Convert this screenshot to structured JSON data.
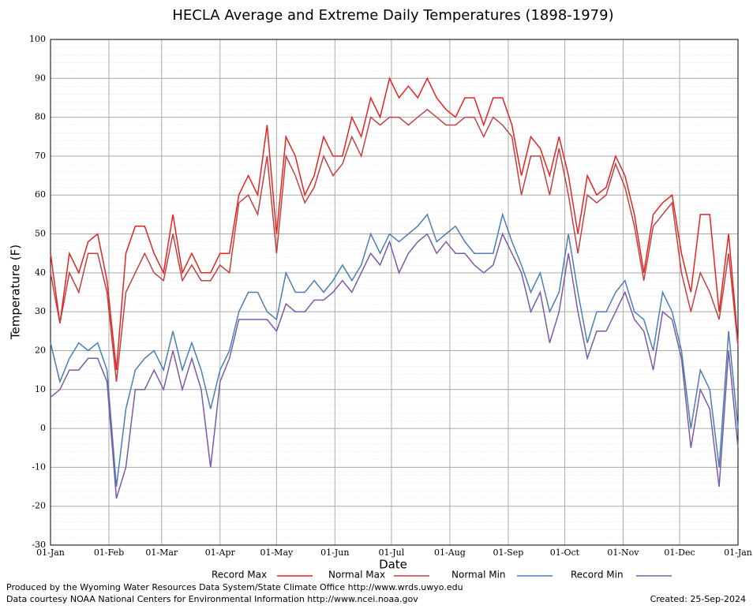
{
  "chart_data": {
    "type": "line",
    "title": "HECLA Average and Extreme Daily Temperatures (1898-1979)",
    "xlabel": "Date",
    "ylabel": "Temperature (F)",
    "x": [
      0,
      5,
      10,
      15,
      20,
      25,
      30,
      35,
      40,
      45,
      50,
      55,
      60,
      65,
      70,
      75,
      80,
      85,
      90,
      95,
      100,
      105,
      110,
      115,
      120,
      125,
      130,
      135,
      140,
      145,
      150,
      155,
      160,
      165,
      170,
      175,
      180,
      185,
      190,
      195,
      200,
      205,
      210,
      215,
      220,
      225,
      230,
      235,
      240,
      245,
      250,
      255,
      260,
      265,
      270,
      275,
      280,
      285,
      290,
      295,
      300,
      305,
      310,
      315,
      320,
      325,
      330,
      335,
      340,
      345,
      350,
      355,
      360,
      365
    ],
    "series": [
      {
        "name": "Record Max",
        "color": "#e8221f",
        "values": [
          45,
          27,
          45,
          40,
          48,
          50,
          38,
          15,
          45,
          52,
          52,
          45,
          40,
          55,
          40,
          45,
          40,
          40,
          45,
          45,
          60,
          65,
          60,
          78,
          50,
          75,
          70,
          60,
          65,
          75,
          70,
          70,
          80,
          75,
          85,
          80,
          90,
          85,
          88,
          85,
          90,
          85,
          82,
          80,
          85,
          85,
          78,
          85,
          85,
          78,
          65,
          75,
          72,
          65,
          75,
          65,
          50,
          65,
          60,
          62,
          70,
          65,
          55,
          40,
          55,
          58,
          60,
          45,
          35,
          55,
          55,
          30,
          50,
          22
        ]
      },
      {
        "name": "Normal Max",
        "color": "#c24141",
        "values": [
          40,
          27,
          40,
          35,
          45,
          45,
          35,
          12,
          35,
          40,
          45,
          40,
          38,
          50,
          38,
          42,
          38,
          38,
          42,
          40,
          58,
          60,
          55,
          70,
          45,
          70,
          65,
          58,
          62,
          70,
          65,
          68,
          75,
          70,
          80,
          78,
          80,
          80,
          78,
          80,
          82,
          80,
          78,
          78,
          80,
          80,
          75,
          80,
          78,
          75,
          60,
          70,
          70,
          60,
          72,
          60,
          45,
          60,
          58,
          60,
          68,
          62,
          52,
          38,
          52,
          55,
          58,
          40,
          30,
          40,
          35,
          28,
          45,
          21
        ]
      },
      {
        "name": "Normal Min",
        "color": "#4a7eb5",
        "values": [
          22,
          12,
          18,
          22,
          20,
          22,
          15,
          -15,
          5,
          15,
          18,
          20,
          15,
          25,
          15,
          22,
          15,
          5,
          15,
          20,
          30,
          35,
          35,
          30,
          28,
          40,
          35,
          35,
          38,
          35,
          38,
          42,
          38,
          42,
          50,
          45,
          50,
          48,
          50,
          52,
          55,
          48,
          50,
          52,
          48,
          45,
          45,
          45,
          55,
          48,
          42,
          35,
          40,
          30,
          35,
          50,
          35,
          22,
          30,
          30,
          35,
          38,
          30,
          28,
          20,
          35,
          30,
          20,
          0,
          15,
          10,
          -10,
          25,
          0
        ]
      },
      {
        "name": "Record Min",
        "color": "#7b5aa6",
        "values": [
          8,
          10,
          15,
          15,
          18,
          18,
          12,
          -18,
          -10,
          10,
          10,
          15,
          10,
          20,
          10,
          18,
          10,
          -10,
          12,
          18,
          28,
          28,
          28,
          28,
          25,
          32,
          30,
          30,
          33,
          33,
          35,
          38,
          35,
          40,
          45,
          42,
          48,
          40,
          45,
          48,
          50,
          45,
          48,
          45,
          45,
          42,
          40,
          42,
          50,
          45,
          40,
          30,
          35,
          22,
          30,
          45,
          30,
          18,
          25,
          25,
          30,
          35,
          28,
          25,
          15,
          30,
          28,
          18,
          -5,
          10,
          5,
          -15,
          20,
          -5
        ]
      }
    ],
    "xlim": [
      0,
      365
    ],
    "xticks": [
      {
        "value": 0,
        "label": "01-Jan"
      },
      {
        "value": 31,
        "label": "01-Feb"
      },
      {
        "value": 59,
        "label": "01-Mar"
      },
      {
        "value": 90,
        "label": "01-Apr"
      },
      {
        "value": 120,
        "label": "01-May"
      },
      {
        "value": 151,
        "label": "01-Jun"
      },
      {
        "value": 181,
        "label": "01-Jul"
      },
      {
        "value": 212,
        "label": "01-Aug"
      },
      {
        "value": 243,
        "label": "01-Sep"
      },
      {
        "value": 273,
        "label": "01-Oct"
      },
      {
        "value": 304,
        "label": "01-Nov"
      },
      {
        "value": 334,
        "label": "01-Dec"
      },
      {
        "value": 365,
        "label": "01-Jan"
      }
    ],
    "ylim": [
      -30,
      100
    ],
    "yticks": [
      -30,
      -20,
      -10,
      0,
      10,
      20,
      30,
      40,
      50,
      60,
      70,
      80,
      90,
      100
    ],
    "grid": true,
    "footer": [
      "Produced by the Wyoming Water Resources Data System/State Climate Office http://www.wrds.uwyo.edu",
      "Data courtesy NOAA National Centers for Environmental Information http://www.ncei.noaa.gov"
    ],
    "created": "Created: 25-Sep-2024"
  }
}
